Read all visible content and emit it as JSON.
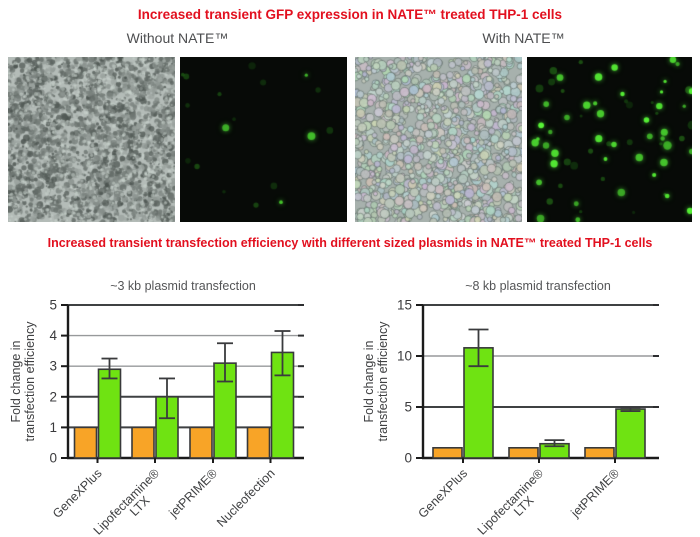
{
  "header": {
    "title": "Increased transient GFP expression in NATE™ treated THP-1 cells"
  },
  "micrographs": {
    "left_label": "Without NATE™",
    "right_label": "With NATE™",
    "panels": [
      {
        "name": "brightfield-without-nate"
      },
      {
        "name": "gfp-fluorescence-without-nate"
      },
      {
        "name": "brightfield-with-nate"
      },
      {
        "name": "gfp-fluorescence-with-nate"
      }
    ]
  },
  "section2": {
    "title": "Increased transient transfection efficiency with different sized plasmids in NATE™ treated THP-1 cells"
  },
  "colors": {
    "title_red": "#e2101f",
    "label_gray": "#4d4e50",
    "bar_orange": "#f8a427",
    "bar_green": "#6fe312",
    "gfp_green": "#4ad62c",
    "axis_black": "#1b1b1b",
    "grid_light": "#97999b",
    "grid_dark": "#3f4143"
  },
  "chart_data": [
    {
      "type": "bar",
      "title": "~3 kb plasmid transfection",
      "ylabel": "Fold change in\ntransfection efficiency",
      "categories": [
        "GeneXPlus",
        "Lipofectamine®\nLTX",
        "jetPRIME®",
        "Nucleofection"
      ],
      "ylim": [
        0,
        5
      ],
      "yticks": [
        0,
        1,
        2,
        3,
        4,
        5
      ],
      "grid": "horizontal",
      "legend": "none",
      "series": [
        {
          "name": "Without NATE™",
          "color": "#f8a427",
          "values": [
            1,
            1,
            1,
            1
          ]
        },
        {
          "name": "With NATE™",
          "color": "#6fe312",
          "values": [
            2.9,
            2.0,
            3.1,
            3.45
          ],
          "error_low": [
            2.6,
            1.3,
            2.5,
            2.7
          ],
          "error_high": [
            3.25,
            2.6,
            3.75,
            4.15
          ]
        }
      ]
    },
    {
      "type": "bar",
      "title": "~8 kb plasmid transfection",
      "ylabel": "Fold change in\ntransfection efficiency",
      "categories": [
        "GeneXPlus",
        "Lipofectamine®\nLTX",
        "jetPRIME®"
      ],
      "ylim": [
        0,
        15
      ],
      "yticks": [
        0,
        5,
        10,
        15
      ],
      "grid": "horizontal",
      "legend": "none",
      "series": [
        {
          "name": "Without NATE™",
          "color": "#f8a427",
          "values": [
            1,
            1,
            1
          ]
        },
        {
          "name": "With NATE™",
          "color": "#6fe312",
          "values": [
            10.8,
            1.4,
            4.8
          ],
          "error_low": [
            9.0,
            1.15,
            4.6
          ],
          "error_high": [
            12.6,
            1.75,
            4.95
          ]
        }
      ]
    }
  ]
}
